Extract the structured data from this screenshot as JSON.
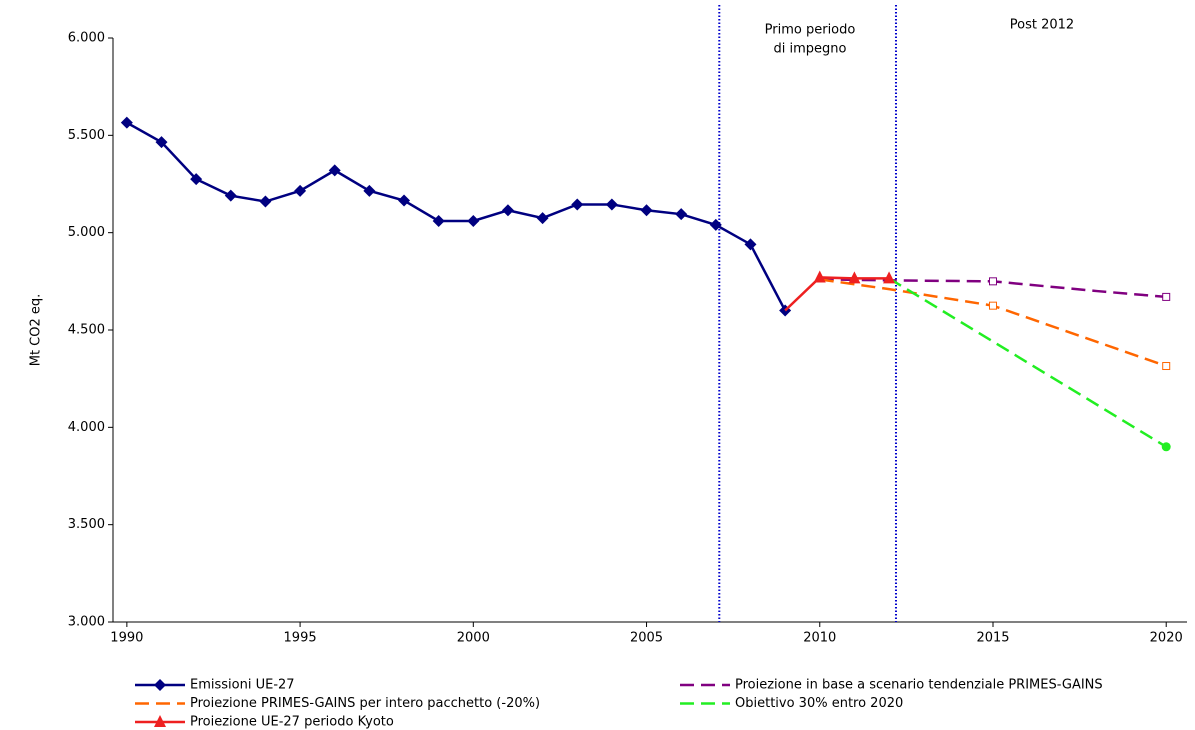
{
  "chart_data": {
    "type": "line",
    "y_label": "Mt CO2 eq.",
    "xlim": [
      1989.6,
      2020.6
    ],
    "xticks": [
      1990,
      1995,
      2000,
      2005,
      2010,
      2015,
      2020
    ],
    "ylim": [
      3000,
      6000
    ],
    "yticks": [
      {
        "value": 3000,
        "label": "3.000"
      },
      {
        "value": 3500,
        "label": "3.500"
      },
      {
        "value": 4000,
        "label": "4.000"
      },
      {
        "value": 4500,
        "label": "4.500"
      },
      {
        "value": 5000,
        "label": "5.000"
      },
      {
        "value": 5500,
        "label": "5.500"
      },
      {
        "value": 6000,
        "label": "6.000"
      }
    ],
    "vlines": [
      2007.1,
      2012.2
    ],
    "vline_color": "#0000cc",
    "annotations": [
      {
        "lines": [
          "Primo periodo",
          "di impegno"
        ]
      },
      {
        "lines": [
          "Post 2012"
        ]
      }
    ],
    "series": [
      {
        "name": "Emissioni UE-27",
        "color": "#000080",
        "dash": false,
        "marker": "diamond",
        "x": [
          1990,
          1991,
          1992,
          1993,
          1994,
          1995,
          1996,
          1997,
          1998,
          1999,
          2000,
          2001,
          2002,
          2003,
          2004,
          2005,
          2006,
          2007,
          2008,
          2009
        ],
        "values": [
          5565,
          5465,
          5275,
          5190,
          5160,
          5215,
          5320,
          5215,
          5165,
          5060,
          5060,
          5115,
          5075,
          5145,
          5145,
          5115,
          5095,
          5040,
          4940,
          4600
        ],
        "marked": [
          true,
          true,
          true,
          true,
          true,
          true,
          true,
          true,
          true,
          true,
          true,
          true,
          true,
          true,
          true,
          true,
          true,
          true,
          true,
          true
        ]
      },
      {
        "name": "Proiezione in base a scenario tendenziale PRIMES-GAINS",
        "color": "#800080",
        "dash": true,
        "marker": "square",
        "x": [
          2010,
          2012,
          2015,
          2018,
          2020
        ],
        "values": [
          4760,
          4755,
          4750,
          4700,
          4670
        ],
        "marked": [
          false,
          false,
          true,
          false,
          true
        ]
      },
      {
        "name": "Proiezione PRIMES-GAINS per intero pacchetto (-20%)",
        "color": "#ff6600",
        "dash": true,
        "marker": "square",
        "x": [
          2010,
          2012,
          2015,
          2020
        ],
        "values": [
          4760,
          4710,
          4625,
          4315
        ],
        "marked": [
          false,
          false,
          true,
          true
        ]
      },
      {
        "name": "Obiettivo 30% entro 2020",
        "color": "#22ee22",
        "dash": true,
        "marker": "circle",
        "x": [
          2012,
          2020
        ],
        "values": [
          4765,
          3900
        ],
        "marked": [
          false,
          true
        ]
      },
      {
        "name": "Proiezione UE-27 periodo Kyoto",
        "color": "#ee2020",
        "dash": false,
        "marker": "triangle",
        "x": [
          2009,
          2010,
          2011,
          2012
        ],
        "values": [
          4600,
          4770,
          4765,
          4765
        ],
        "marked": [
          false,
          true,
          true,
          true
        ]
      }
    ]
  }
}
